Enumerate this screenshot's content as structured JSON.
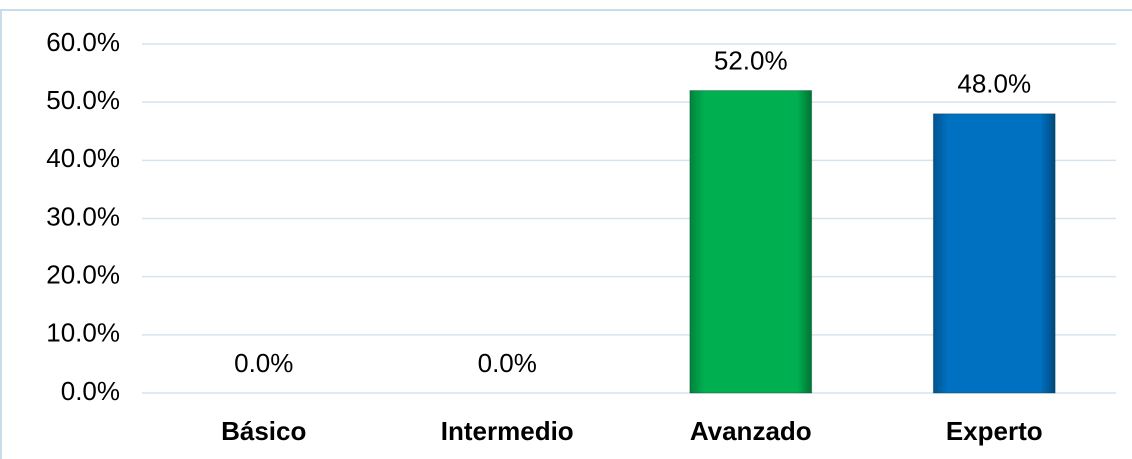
{
  "chart_data": {
    "type": "bar",
    "categories": [
      "Básico",
      "Intermedio",
      "Avanzado",
      "Experto"
    ],
    "values": [
      0,
      0,
      52,
      48
    ],
    "value_labels": [
      "0.0%",
      "0.0%",
      "52.0%",
      "48.0%"
    ],
    "colors": [
      "#00b050",
      "#00b050",
      "#00b050",
      "#0070c0"
    ],
    "ylim": [
      0,
      60
    ],
    "yticks": [
      {
        "value": 0,
        "label": "0.0%"
      },
      {
        "value": 10,
        "label": "10.0%"
      },
      {
        "value": 20,
        "label": "20.0%"
      },
      {
        "value": 30,
        "label": "30.0%"
      },
      {
        "value": 40,
        "label": "40.0%"
      },
      {
        "value": 50,
        "label": "50.0%"
      },
      {
        "value": 60,
        "label": "60.0%"
      }
    ],
    "grid": true
  }
}
